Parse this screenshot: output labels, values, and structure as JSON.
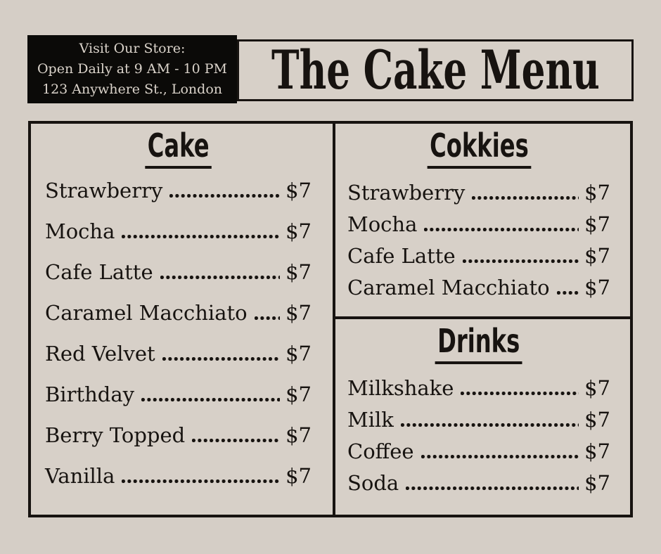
{
  "colors": {
    "page_bg": "#d5cec6",
    "panel_bg": "#d7d0c8",
    "ink": "#171310",
    "black_panel": "#0b0a08",
    "cream_text": "#dad3ca"
  },
  "header": {
    "store_info_lines": [
      "Visit Our Store:",
      "Open Daily at 9 AM - 10 PM",
      "123 Anywhere St., London"
    ],
    "title": "The Cake Menu"
  },
  "sections": [
    {
      "title": "Cake",
      "items": [
        {
          "name": "Strawberry",
          "price": "$7"
        },
        {
          "name": "Mocha",
          "price": "$7"
        },
        {
          "name": "Cafe Latte",
          "price": "$7"
        },
        {
          "name": "Caramel Macchiato",
          "price": "$7"
        },
        {
          "name": "Red Velvet",
          "price": "$7"
        },
        {
          "name": "Birthday",
          "price": "$7"
        },
        {
          "name": "Berry Topped",
          "price": "$7"
        },
        {
          "name": "Vanilla",
          "price": "$7"
        }
      ]
    },
    {
      "title": "Cokkies",
      "items": [
        {
          "name": "Strawberry",
          "price": "$7"
        },
        {
          "name": "Mocha",
          "price": "$7"
        },
        {
          "name": "Cafe Latte",
          "price": "$7"
        },
        {
          "name": "Caramel Macchiato",
          "price": "$7"
        }
      ]
    },
    {
      "title": "Drinks",
      "items": [
        {
          "name": "Milkshake",
          "price": "$7"
        },
        {
          "name": "Milk",
          "price": "$7"
        },
        {
          "name": "Coffee",
          "price": "$7"
        },
        {
          "name": "Soda",
          "price": "$7"
        }
      ]
    }
  ]
}
